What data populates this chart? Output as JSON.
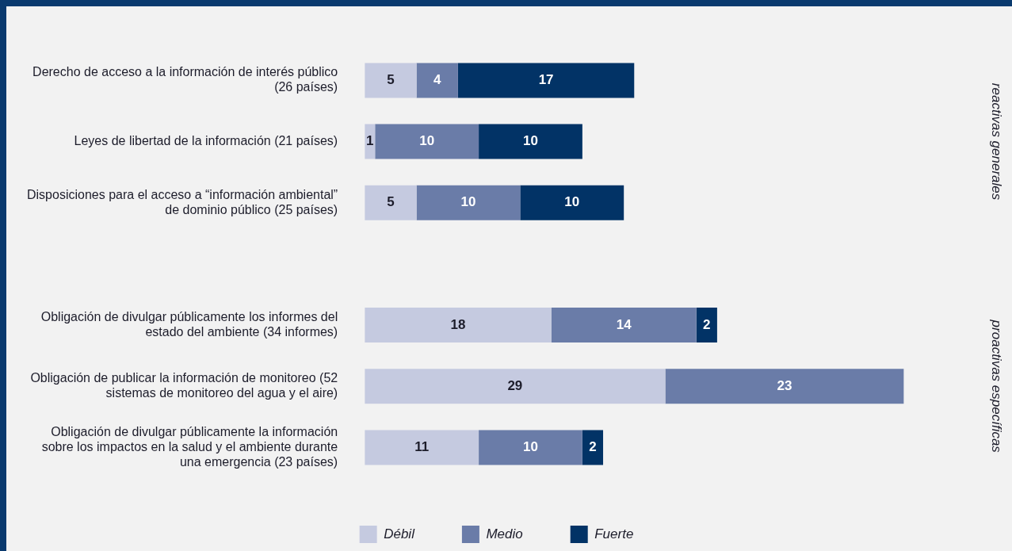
{
  "chart_data": {
    "type": "bar",
    "orientation": "horizontal",
    "stacked": true,
    "tick_labels": "y",
    "data_labels": true,
    "categories": [
      "Derecho de acceso a la información de interés público (26 países)",
      "Leyes de libertad de la información (21 países)",
      "Disposiciones para el acceso a “información ambiental” de dominio público (25 países)",
      null,
      "Obligación de divulgar públicamente los informes del estado del ambiente (34 informes)",
      "Obligación de publicar la información de monitoreo (52 sistemas de monitoreo del agua y el aire)",
      "Obligación de divulgar públicamente la información sobre los impactos en la salud y el ambiente durante una emergencia (23 países)"
    ],
    "series": [
      {
        "name": "Débil",
        "color": "#c5cae0",
        "values": [
          5,
          1,
          5,
          null,
          18,
          29,
          11
        ]
      },
      {
        "name": "Medio",
        "color": "#6a7ca8",
        "values": [
          4,
          10,
          10,
          null,
          14,
          23,
          10
        ]
      },
      {
        "name": "Fuerte",
        "color": "#023366",
        "values": [
          17,
          10,
          10,
          null,
          2,
          null,
          2
        ]
      }
    ],
    "annotations": [
      "reactivas generales",
      "proactivas específicas"
    ],
    "legend": "bottom",
    "grid": false
  }
}
